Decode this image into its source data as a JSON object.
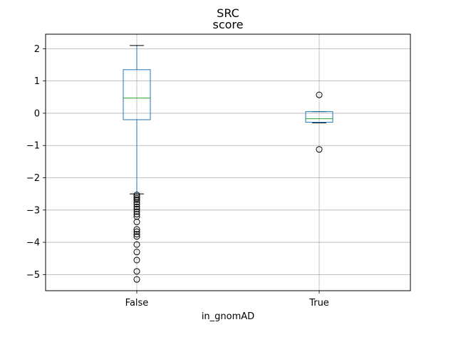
{
  "chart_data": {
    "type": "box",
    "suptitle": "SRC",
    "title": "score",
    "xlabel": "in_gnomAD",
    "ylabel": "",
    "categories": [
      "False",
      "True"
    ],
    "ylim": [
      -5.5,
      2.45
    ],
    "yticks": [
      2,
      1,
      0,
      -1,
      -2,
      -3,
      -4,
      -5
    ],
    "ytick_labels": [
      "2",
      "1",
      "0",
      "−1",
      "−2",
      "−3",
      "−4",
      "−5"
    ],
    "grid": true,
    "boxes": [
      {
        "category": "False",
        "whisker_high": 2.1,
        "q3": 1.35,
        "median": 0.47,
        "q1": -0.2,
        "whisker_low": -2.5,
        "fliers": [
          -2.53,
          -2.58,
          -2.63,
          -2.68,
          -2.75,
          -2.82,
          -2.9,
          -2.97,
          -3.05,
          -3.13,
          -3.2,
          -3.37,
          -3.6,
          -3.67,
          -3.75,
          -3.82,
          -4.07,
          -4.3,
          -4.55,
          -4.9,
          -5.15
        ]
      },
      {
        "category": "True",
        "whisker_high": 0.05,
        "q3": 0.05,
        "median": -0.17,
        "q1": -0.28,
        "whisker_low": -0.3,
        "fliers": [
          0.57,
          -1.12
        ]
      }
    ]
  }
}
